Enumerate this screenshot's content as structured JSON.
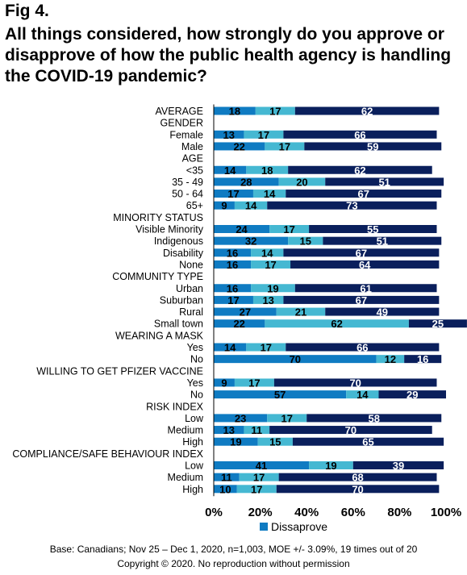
{
  "figure_label": "Fig 4.",
  "title": "All things considered, how strongly do you approve or disapprove of how the public health agency is handling the COVID-19 pandemic?",
  "legend_label": "Dissaprove",
  "footer_base": "Base: Canadians; Nov 25 – Dec 1, 2020, n=1,003, MOE +/- 3.09%, 19 times out of 20",
  "footer_copyright": "Copyright © 2020. No reproduction without permission",
  "colors": {
    "disapprove": "#0F7BC2",
    "neither": "#45B8D2",
    "approve": "#0A1F5C"
  },
  "chart_data": {
    "type": "bar",
    "orientation": "horizontal",
    "stacked": true,
    "xlim": [
      0,
      100
    ],
    "x_tick_labels": [
      "0%",
      "20%",
      "40%",
      "60%",
      "80%",
      "100%"
    ],
    "legend_position": "bottom",
    "series": [
      {
        "name": "Dissaprove",
        "key": "disapprove"
      }
    ],
    "rows": [
      {
        "label": "AVERAGE",
        "values": [
          18,
          17,
          62
        ]
      },
      {
        "label": "GENDER",
        "header": true
      },
      {
        "label": "Female",
        "values": [
          13,
          17,
          66
        ]
      },
      {
        "label": "Male",
        "values": [
          22,
          17,
          59
        ]
      },
      {
        "label": "AGE",
        "header": true
      },
      {
        "label": "<35",
        "values": [
          14,
          18,
          62
        ]
      },
      {
        "label": "35 - 49",
        "values": [
          28,
          20,
          51
        ]
      },
      {
        "label": "50 - 64",
        "values": [
          17,
          14,
          67
        ]
      },
      {
        "label": "65+",
        "values": [
          9,
          14,
          73
        ]
      },
      {
        "label": "MINORITY STATUS",
        "header": true
      },
      {
        "label": "Visible Minority",
        "values": [
          24,
          17,
          55
        ]
      },
      {
        "label": "Indigenous",
        "values": [
          32,
          15,
          51
        ]
      },
      {
        "label": "Disability",
        "values": [
          16,
          14,
          67
        ]
      },
      {
        "label": "None",
        "values": [
          16,
          17,
          64
        ]
      },
      {
        "label": "COMMUNITY TYPE",
        "header": true
      },
      {
        "label": "Urban",
        "values": [
          16,
          19,
          61
        ]
      },
      {
        "label": "Suburban",
        "values": [
          17,
          13,
          67
        ]
      },
      {
        "label": "Rural",
        "values": [
          27,
          21,
          49
        ]
      },
      {
        "label": "Small town",
        "values": [
          22,
          62,
          25
        ]
      },
      {
        "label": "WEARING A MASK",
        "header": true
      },
      {
        "label": "Yes",
        "values": [
          14,
          17,
          66
        ]
      },
      {
        "label": "No",
        "values": [
          70,
          12,
          16
        ]
      },
      {
        "label": "WILLING TO GET PFIZER VACCINE",
        "header": true
      },
      {
        "label": "Yes",
        "values": [
          9,
          17,
          70
        ]
      },
      {
        "label": "No",
        "values": [
          57,
          14,
          29
        ]
      },
      {
        "label": "RISK INDEX",
        "header": true
      },
      {
        "label": "Low",
        "values": [
          23,
          17,
          58
        ]
      },
      {
        "label": "Medium",
        "values": [
          13,
          11,
          70
        ]
      },
      {
        "label": "High",
        "values": [
          19,
          15,
          65
        ]
      },
      {
        "label": "COMPLIANCE/SAFE BEHAVIOUR INDEX",
        "header": true
      },
      {
        "label": "Low",
        "values": [
          41,
          19,
          39
        ]
      },
      {
        "label": "Medium",
        "values": [
          11,
          17,
          68
        ]
      },
      {
        "label": "High",
        "values": [
          10,
          17,
          70
        ]
      }
    ]
  }
}
